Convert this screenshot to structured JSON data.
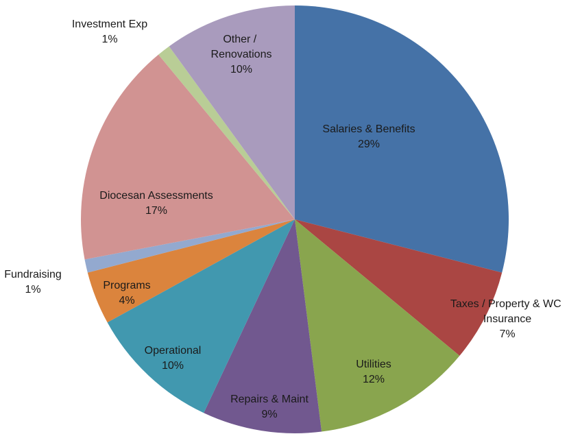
{
  "chart_data": {
    "type": "pie",
    "categories": [
      "Salaries & Benefits",
      "Taxes / Property & WC Insurance",
      "Utilities",
      "Repairs & Maint",
      "Operational",
      "Programs",
      "Fundraising",
      "Diocesan Assessments",
      "Investment Exp",
      "Other / Renovations"
    ],
    "values": [
      29,
      7,
      12,
      9,
      10,
      4,
      1,
      17,
      1,
      10
    ],
    "value_labels": [
      "29%",
      "7%",
      "12%",
      "9%",
      "10%",
      "4%",
      "1%",
      "17%",
      "1%",
      "10%"
    ],
    "colors": [
      "#4572a7",
      "#aa4643",
      "#89a54e",
      "#71588f",
      "#4198af",
      "#db843d",
      "#93a9cf",
      "#d19392",
      "#b9cd96",
      "#a99bbd"
    ]
  }
}
